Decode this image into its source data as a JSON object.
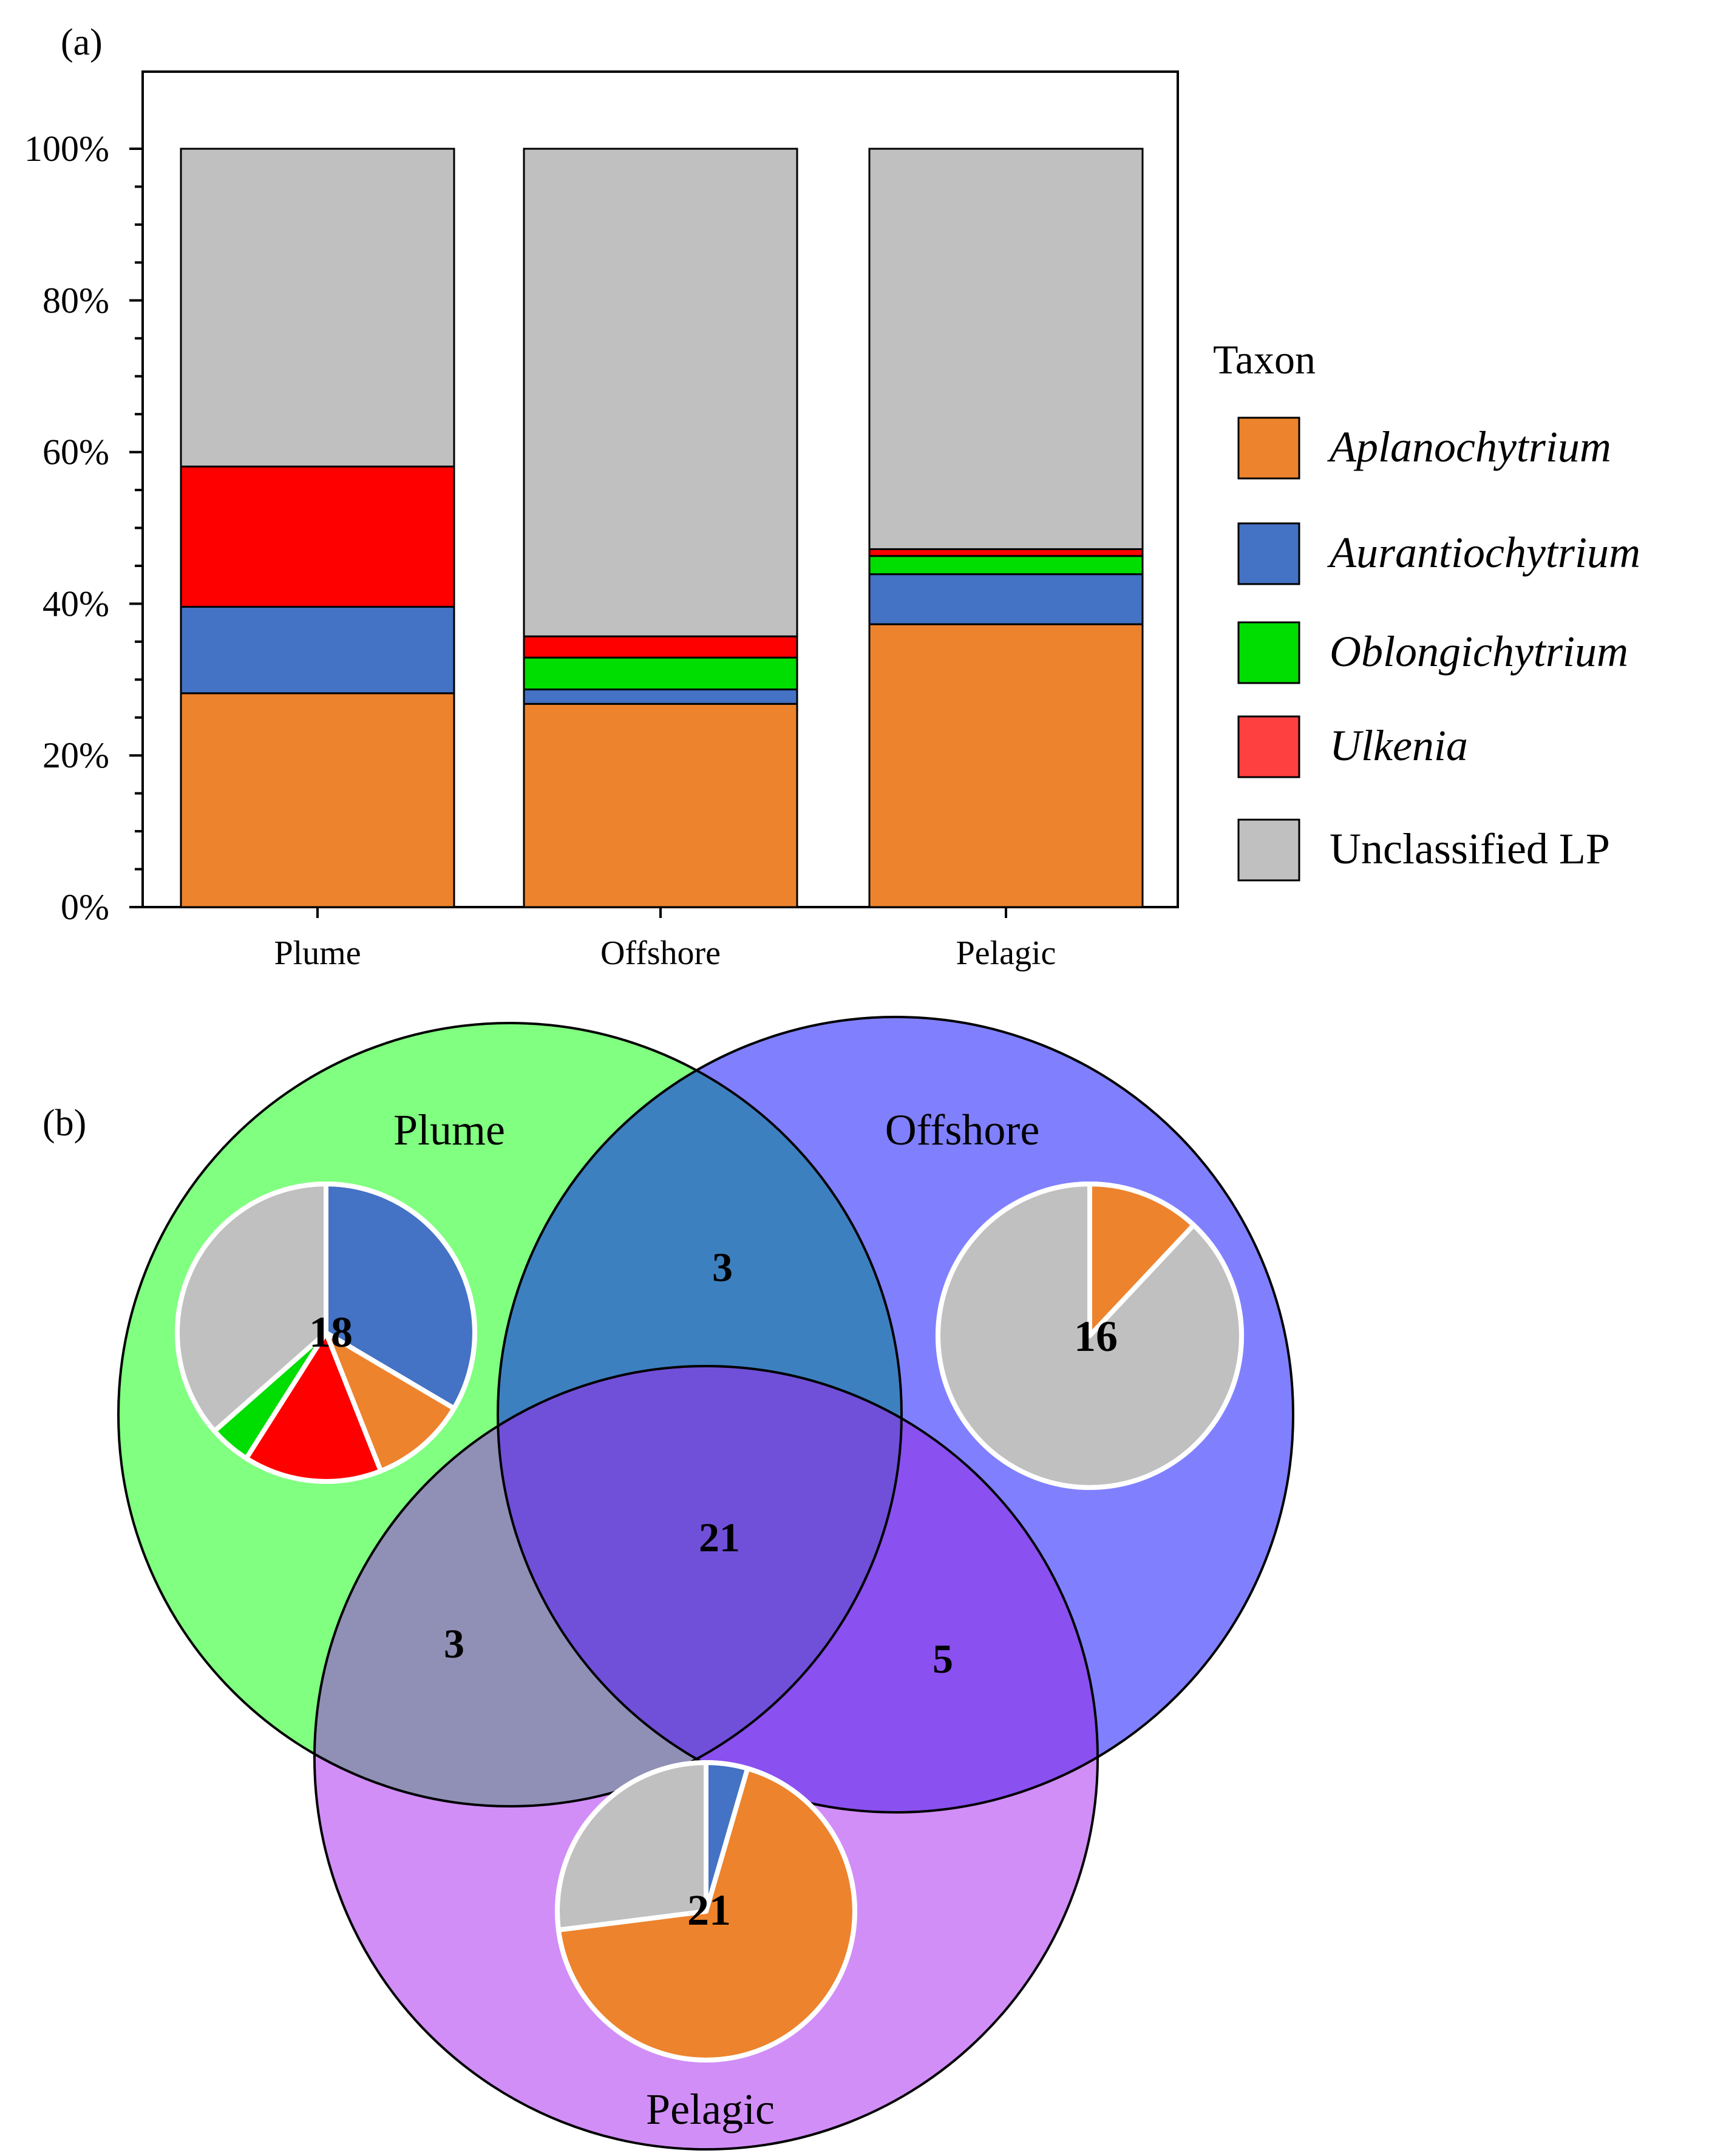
{
  "panel_labels": {
    "a": "(a)",
    "b": "(b)"
  },
  "colors": {
    "Aplanochytrium": "#ED832D",
    "Aurantiochytrium": "#4472C4",
    "Oblongichytrium": "#00DD00",
    "Ulkenia": "#FF0000",
    "Unclassified LP": "#C0C0C0",
    "legend_Ulkenia": "#FF4040",
    "venn_plume": "#80FF80",
    "venn_offshore": "#8080FF",
    "venn_pelagic": "#D18EF7",
    "venn_plume_offshore": "#3D80C0",
    "venn_plume_pelagic": "#9090B6",
    "venn_offshore_pelagic": "#8A50F0",
    "venn_center": "#7050D8"
  },
  "chart_data": [
    {
      "type": "bar",
      "stacked": true,
      "normalized": true,
      "panel": "(a)",
      "categories": [
        "Plume",
        "Offshore",
        "Pelagic"
      ],
      "series": [
        {
          "name": "Aplanochytrium",
          "values": [
            28.2,
            26.8,
            37.3
          ]
        },
        {
          "name": "Aurantiochytrium",
          "values": [
            11.4,
            1.9,
            6.6
          ]
        },
        {
          "name": "Oblongichytrium",
          "values": [
            0,
            4.2,
            2.4
          ]
        },
        {
          "name": "Ulkenia",
          "values": [
            18.5,
            2.8,
            0.9
          ]
        },
        {
          "name": "Unclassified LP",
          "values": [
            41.9,
            64.3,
            52.8
          ]
        }
      ],
      "ylim": [
        0,
        100
      ],
      "yticks": [
        "0%",
        "20%",
        "40%",
        "60%",
        "80%",
        "100%"
      ],
      "xlabel": "",
      "ylabel": "",
      "legend": {
        "title": "Taxon",
        "position": "right",
        "entries": [
          "Aplanochytrium",
          "Aurantiochytrium",
          "Oblongichytrium",
          "Ulkenia",
          "Unclassified LP"
        ],
        "italic": [
          true,
          true,
          true,
          true,
          false
        ]
      }
    },
    {
      "type": "venn",
      "panel": "(b)",
      "sets": [
        "Plume",
        "Offshore",
        "Pelagic"
      ],
      "regions": {
        "Plume_only": 18,
        "Offshore_only": 16,
        "Pelagic_only": 21,
        "Plume_Offshore": 3,
        "Plume_Pelagic": 3,
        "Offshore_Pelagic": 5,
        "all_three": 21
      },
      "pies": [
        {
          "set": "Plume",
          "label": "18",
          "slices": [
            {
              "name": "Aurantiochytrium",
              "value": 33.5
            },
            {
              "name": "Aplanochytrium",
              "value": 10.5
            },
            {
              "name": "Ulkenia",
              "value": 15.0
            },
            {
              "name": "Oblongichytrium",
              "value": 4.5
            },
            {
              "name": "Unclassified LP",
              "value": 36.5
            }
          ]
        },
        {
          "set": "Offshore",
          "label": "16",
          "slices": [
            {
              "name": "Aplanochytrium",
              "value": 12.0
            },
            {
              "name": "Unclassified LP",
              "value": 88.0
            }
          ]
        },
        {
          "set": "Pelagic",
          "label": "21",
          "slices": [
            {
              "name": "Aurantiochytrium",
              "value": 4.5
            },
            {
              "name": "Aplanochytrium",
              "value": 68.5
            },
            {
              "name": "Unclassified LP",
              "value": 27.0
            }
          ]
        }
      ]
    }
  ]
}
